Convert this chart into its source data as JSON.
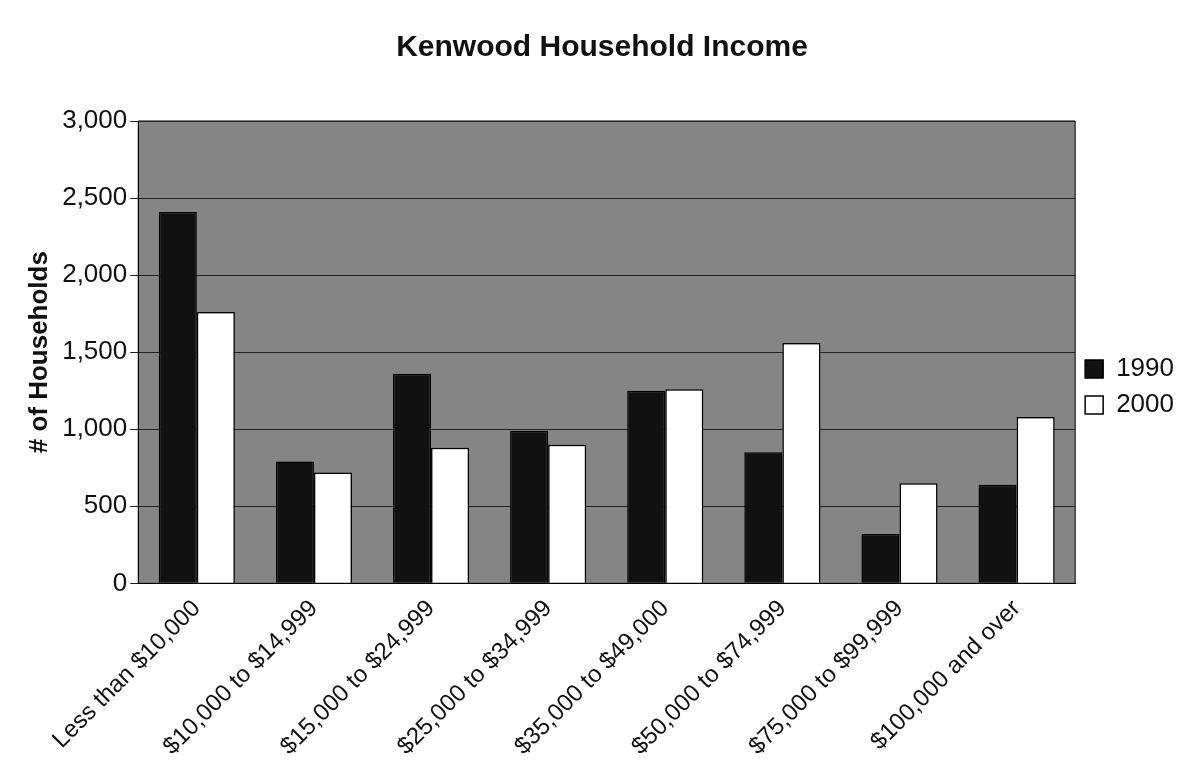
{
  "chart_data": {
    "type": "bar",
    "title": "Kenwood Household Income",
    "ylabel": "# of Households",
    "categories": [
      "Less than $10,000",
      "$10,000 to $14,999",
      "$15,000 to $24,999",
      "$25,000 to $34,999",
      "$35,000 to $49,000",
      "$50,000 to $74,999",
      "$75,000 to $99,999",
      "$100,000 and over"
    ],
    "series": [
      {
        "name": "1990",
        "color": "#111111",
        "values": [
          2410,
          790,
          1360,
          990,
          1250,
          850,
          320,
          640
        ]
      },
      {
        "name": "2000",
        "color": "#ffffff",
        "values": [
          1760,
          720,
          880,
          900,
          1260,
          1560,
          650,
          1080
        ]
      }
    ],
    "ylim": [
      0,
      3000
    ],
    "yticks": [
      0,
      {
        "value": 500,
        "label": "500"
      },
      {
        "value": 1000,
        "label": "1,000"
      },
      {
        "value": 1500,
        "label": "1,500"
      },
      {
        "value": 2000,
        "label": "2,000"
      },
      {
        "value": 2500,
        "label": "2,500"
      },
      {
        "value": 3000,
        "label": "3,000"
      }
    ],
    "grid": "y",
    "legend": "right"
  }
}
